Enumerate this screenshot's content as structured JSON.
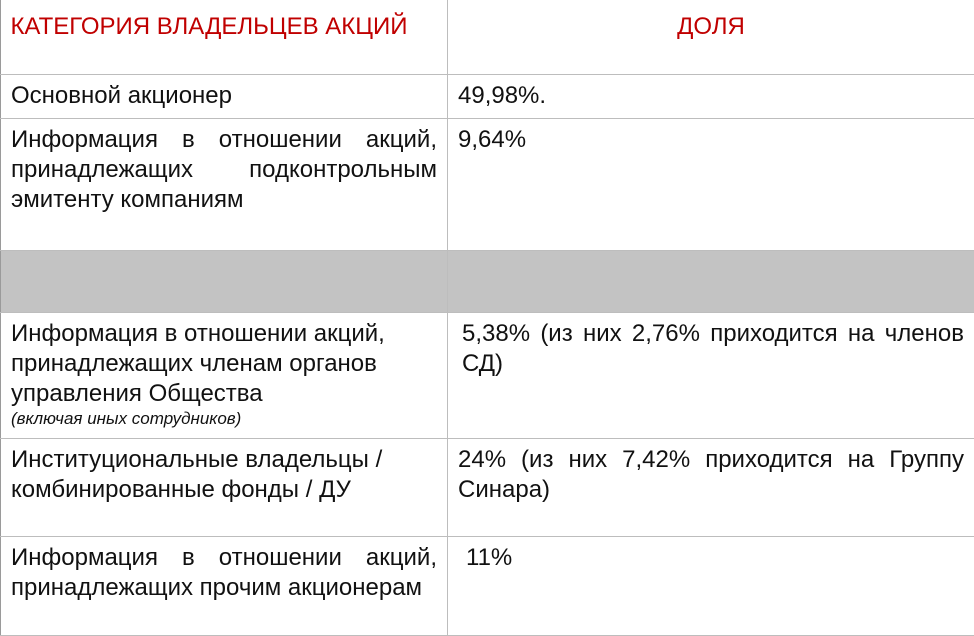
{
  "table": {
    "headers": {
      "category": "КАТЕГОРИЯ ВЛАДЕЛЬЦЕВ АКЦИЙ",
      "share": "ДОЛЯ"
    },
    "rows": [
      {
        "category": "Основной акционер",
        "share": "49,98%."
      },
      {
        "category": "Информация в отношении акций, принадлежащих подконтрольным эмитенту компаниям",
        "share": "9,64%"
      },
      {
        "category": "",
        "share": ""
      },
      {
        "category": "Информация в отношении акций, принадлежащих членам органов управления Общества",
        "note": "(включая иных сотрудников)",
        "share": "5,38% (из них 2,76% приходится на членов СД)"
      },
      {
        "category": "Институциональные владельцы / комбинированные фонды / ДУ",
        "share": "24% (из них 7,42% приходится на Группу Синара)"
      },
      {
        "category": "Информация в отношении акций, принадлежащих прочим акционерам",
        "share": "11%"
      }
    ]
  },
  "colors": {
    "header_text": "#c00000",
    "blank_row_fill": "#c3c3c3"
  }
}
